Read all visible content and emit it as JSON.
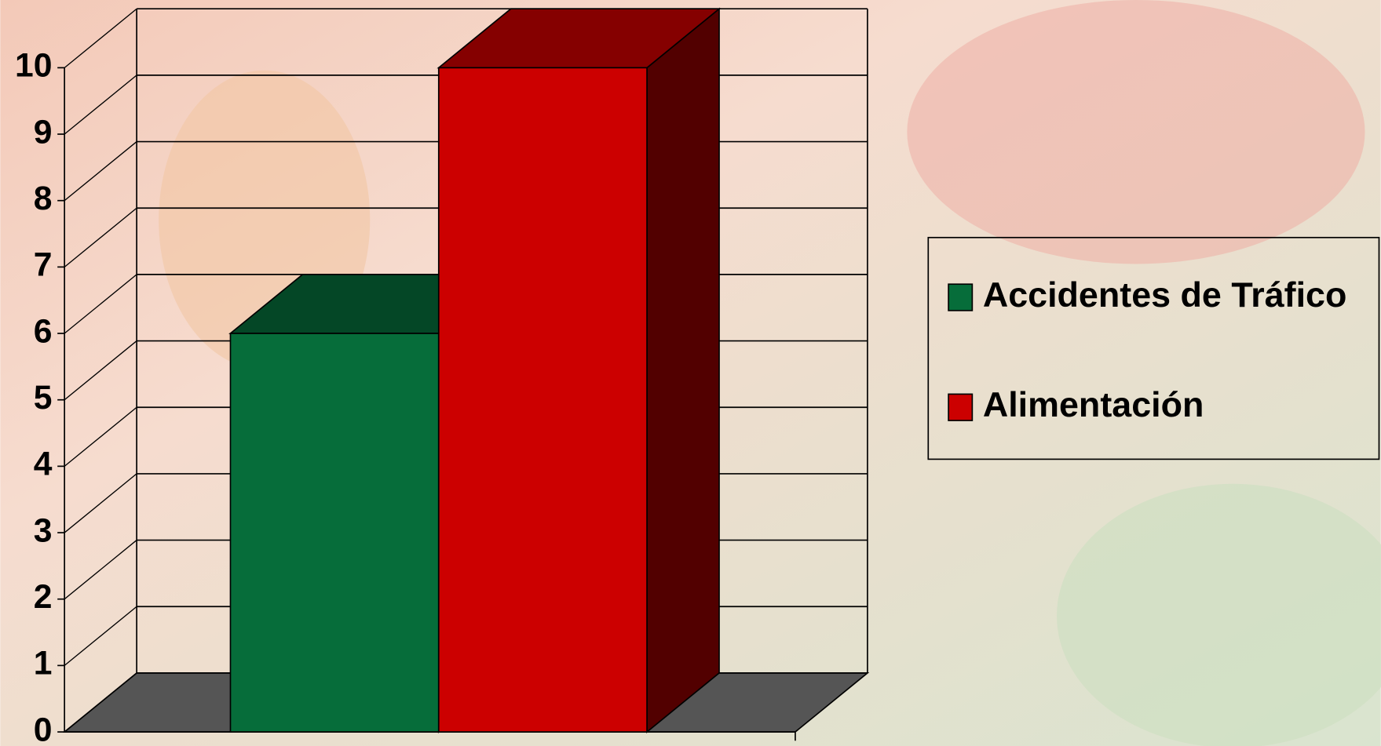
{
  "chart_data": {
    "type": "bar",
    "categories": [
      null
    ],
    "series": [
      {
        "name": "Accidentes de Tráfico",
        "color": "#066d3a",
        "values": [
          6
        ]
      },
      {
        "name": "Alimentación",
        "color": "#cc0000",
        "values": [
          10
        ]
      }
    ],
    "ylim": [
      0,
      10
    ],
    "yticks": [
      0,
      1,
      2,
      3,
      4,
      5,
      6,
      7,
      8,
      9,
      10
    ],
    "grid": true,
    "legend": "right"
  }
}
